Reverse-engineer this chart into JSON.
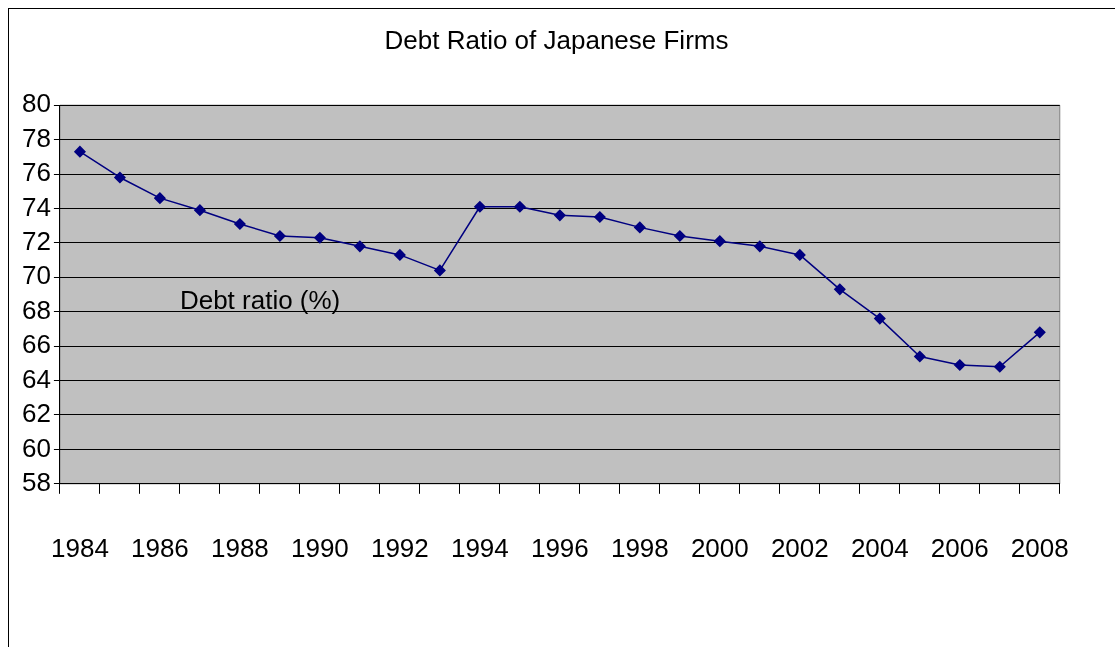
{
  "chart_data": {
    "type": "line",
    "title": "Debt Ratio of Japanese Firms",
    "categories": [
      "1984",
      null,
      "1986",
      null,
      "1988",
      null,
      "1990",
      null,
      "1992",
      null,
      "1994",
      null,
      "1996",
      null,
      "1998",
      null,
      "2000",
      null,
      "2002",
      null,
      "2004",
      null,
      "2006",
      null,
      "2008"
    ],
    "series": [
      {
        "color": "#000080",
        "values": [
          77.3,
          75.8,
          74.6,
          73.9,
          73.1,
          72.4,
          72.3,
          71.8,
          71.3,
          70.4,
          74.1,
          74.1,
          73.6,
          73.5,
          72.9,
          72.4,
          72.1,
          71.8,
          71.3,
          69.3,
          67.6,
          65.4,
          64.9,
          64.8,
          66.8
        ]
      }
    ],
    "annotations": [
      "Debt ratio (%)"
    ],
    "ylim": [
      58,
      80
    ],
    "yticks": [
      58,
      60,
      62,
      64,
      66,
      68,
      70,
      72,
      74,
      76,
      78,
      80
    ],
    "grid": "y",
    "legend": false,
    "marker": "diamond",
    "line_style": "solid"
  }
}
